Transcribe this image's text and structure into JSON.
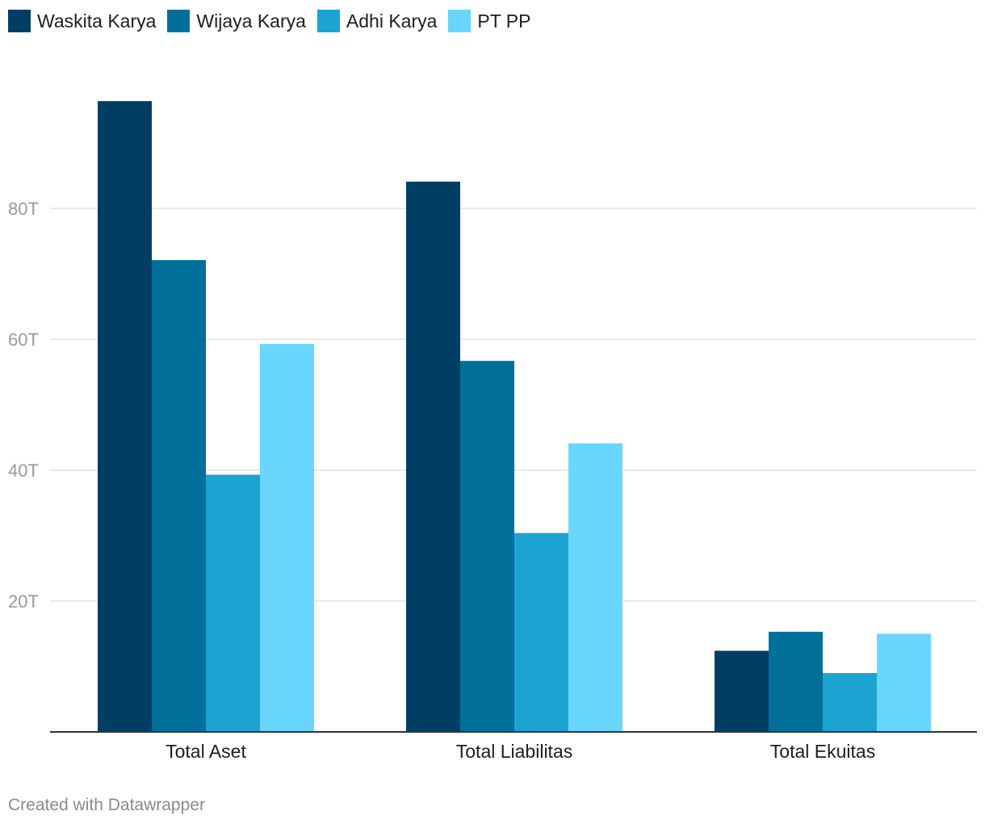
{
  "colors": {
    "waskita": "#003f63",
    "wijaya": "#00709b",
    "adhi": "#1ba4d1",
    "pp": "#69d6fd",
    "grid": "#e2e2e2",
    "axis": "#333333",
    "tick_text": "#9a9a9a",
    "category_text": "#1d1d1d"
  },
  "legend": [
    {
      "label": "Waskita Karya",
      "color": "#003f63"
    },
    {
      "label": "Wijaya Karya",
      "color": "#00709b"
    },
    {
      "label": "Adhi Karya",
      "color": "#1ba4d1"
    },
    {
      "label": "PT PP",
      "color": "#69d6fd"
    }
  ],
  "chart_data": {
    "type": "bar",
    "categories": [
      "Total Aset",
      "Total Liabilitas",
      "Total Ekuitas"
    ],
    "series": [
      {
        "name": "Waskita Karya",
        "values": [
          96.4,
          84.1,
          12.4
        ],
        "color": "#003f63"
      },
      {
        "name": "Wijaya Karya",
        "values": [
          72.1,
          56.7,
          15.3
        ],
        "color": "#00709b"
      },
      {
        "name": "Adhi Karya",
        "values": [
          39.3,
          30.4,
          9.0
        ],
        "color": "#1ba4d1"
      },
      {
        "name": "PT PP",
        "values": [
          59.3,
          44.1,
          15.0
        ],
        "color": "#69d6fd"
      }
    ],
    "yticks": [
      20,
      40,
      60,
      80
    ],
    "ytick_labels": [
      "20T",
      "40T",
      "60T",
      "80T"
    ],
    "ylim": [
      0,
      100
    ],
    "grid": true,
    "legend_position": "top-left"
  },
  "footer": {
    "credit": "Created with Datawrapper"
  }
}
